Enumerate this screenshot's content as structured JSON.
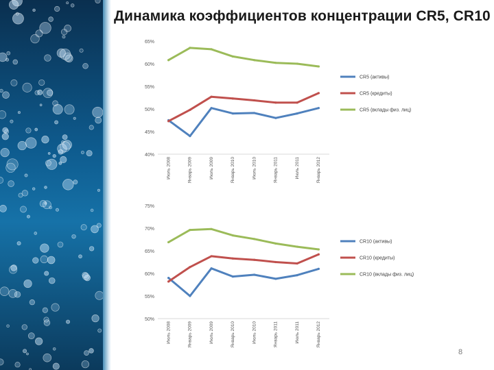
{
  "slide": {
    "title": "Динамика коэффициентов концентрации CR5, CR10",
    "page_number": "8"
  },
  "colors": {
    "assets": "#4f81bd",
    "credits": "#c0504d",
    "deposits": "#9bbb59",
    "gridline": "#d9d9d9",
    "axis_text": "#595959"
  },
  "background_icon": "water-bubbles-image",
  "chart_data": [
    {
      "type": "line",
      "categories": [
        "Июль 2008",
        "Январь 2009",
        "Июль 2009",
        "Январь 2010",
        "Июль 2010",
        "Январь 2011",
        "Июль 2011",
        "Январь 2012"
      ],
      "yticks": [
        "65%",
        "60%",
        "55%",
        "50%",
        "45%",
        "40%"
      ],
      "ylim": [
        40,
        65
      ],
      "legend_position": "right",
      "grid": false,
      "series": [
        {
          "name": "CR5 (активы)",
          "color": "#4f81bd",
          "values": [
            47.5,
            44,
            50.2,
            49,
            49.1,
            48,
            49,
            50.2
          ]
        },
        {
          "name": "CR5 (кредиты)",
          "color": "#c0504d",
          "values": [
            47.3,
            49.8,
            52.7,
            52.3,
            51.9,
            51.4,
            51.4,
            53.5
          ]
        },
        {
          "name": "CR5 (вклады физ. лиц)",
          "color": "#9bbb59",
          "values": [
            60.8,
            63.5,
            63.2,
            61.6,
            60.8,
            60.2,
            60,
            59.4
          ]
        }
      ]
    },
    {
      "type": "line",
      "categories": [
        "Июль 2008",
        "Январь 2009",
        "Июль 2009",
        "Январь 2010",
        "Июль 2010",
        "Январь 2011",
        "Июль 2011",
        "Январь 2012"
      ],
      "yticks": [
        "75%",
        "70%",
        "65%",
        "60%",
        "55%",
        "50%"
      ],
      "ylim": [
        50,
        75
      ],
      "legend_position": "right",
      "grid": false,
      "series": [
        {
          "name": "CR10 (активы)",
          "color": "#4f81bd",
          "values": [
            59,
            55,
            61.1,
            59.3,
            59.7,
            58.8,
            59.6,
            61
          ]
        },
        {
          "name": "CR10 (кредиты)",
          "color": "#c0504d",
          "values": [
            58.2,
            61.4,
            63.8,
            63.3,
            63,
            62.5,
            62.2,
            64.2
          ]
        },
        {
          "name": "CR10 (вклады физ. лиц)",
          "color": "#9bbb59",
          "values": [
            66.9,
            69.6,
            69.8,
            68.4,
            67.6,
            66.6,
            65.9,
            65.3
          ]
        }
      ]
    }
  ]
}
